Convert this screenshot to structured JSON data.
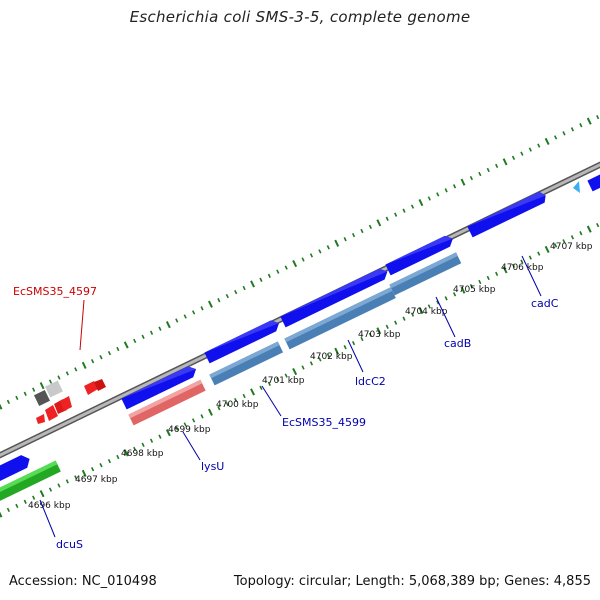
{
  "title": "Escherichia coli SMS-3-5, complete genome",
  "footer": {
    "accession": "Accession: NC_010498",
    "summary": "Topology: circular; Length: 5,068,389 bp; Genes: 4,855"
  },
  "scale_labels": [
    "4696 kbp",
    "4697 kbp",
    "4698 kbp",
    "4699 kbp",
    "4700 kbp",
    "4701 kbp",
    "4702 kbp",
    "4703 kbp",
    "4704 kbp",
    "4705 kbp",
    "4706 kbp",
    "4707 kbp"
  ],
  "gene_labels": [
    {
      "text": "EcSMS35_4597",
      "color": "#cc0000"
    },
    {
      "text": "dcuS",
      "color": "#0000aa"
    },
    {
      "text": "lysU",
      "color": "#0000aa"
    },
    {
      "text": "EcSMS35_4599",
      "color": "#0000aa"
    },
    {
      "text": "ldcC2",
      "color": "#0000aa"
    },
    {
      "text": "cadB",
      "color": "#0000aa"
    },
    {
      "text": "cadC",
      "color": "#0000aa"
    }
  ],
  "colors": {
    "backbone": "#888888",
    "ticks": "#1f7a1f",
    "forward_gene": "#1010ee",
    "reverse_gene_light": "#4a7fb5",
    "trna": "#ee2222",
    "pseudo_gene": "#f08080",
    "green_gene": "#2ec02e"
  }
}
